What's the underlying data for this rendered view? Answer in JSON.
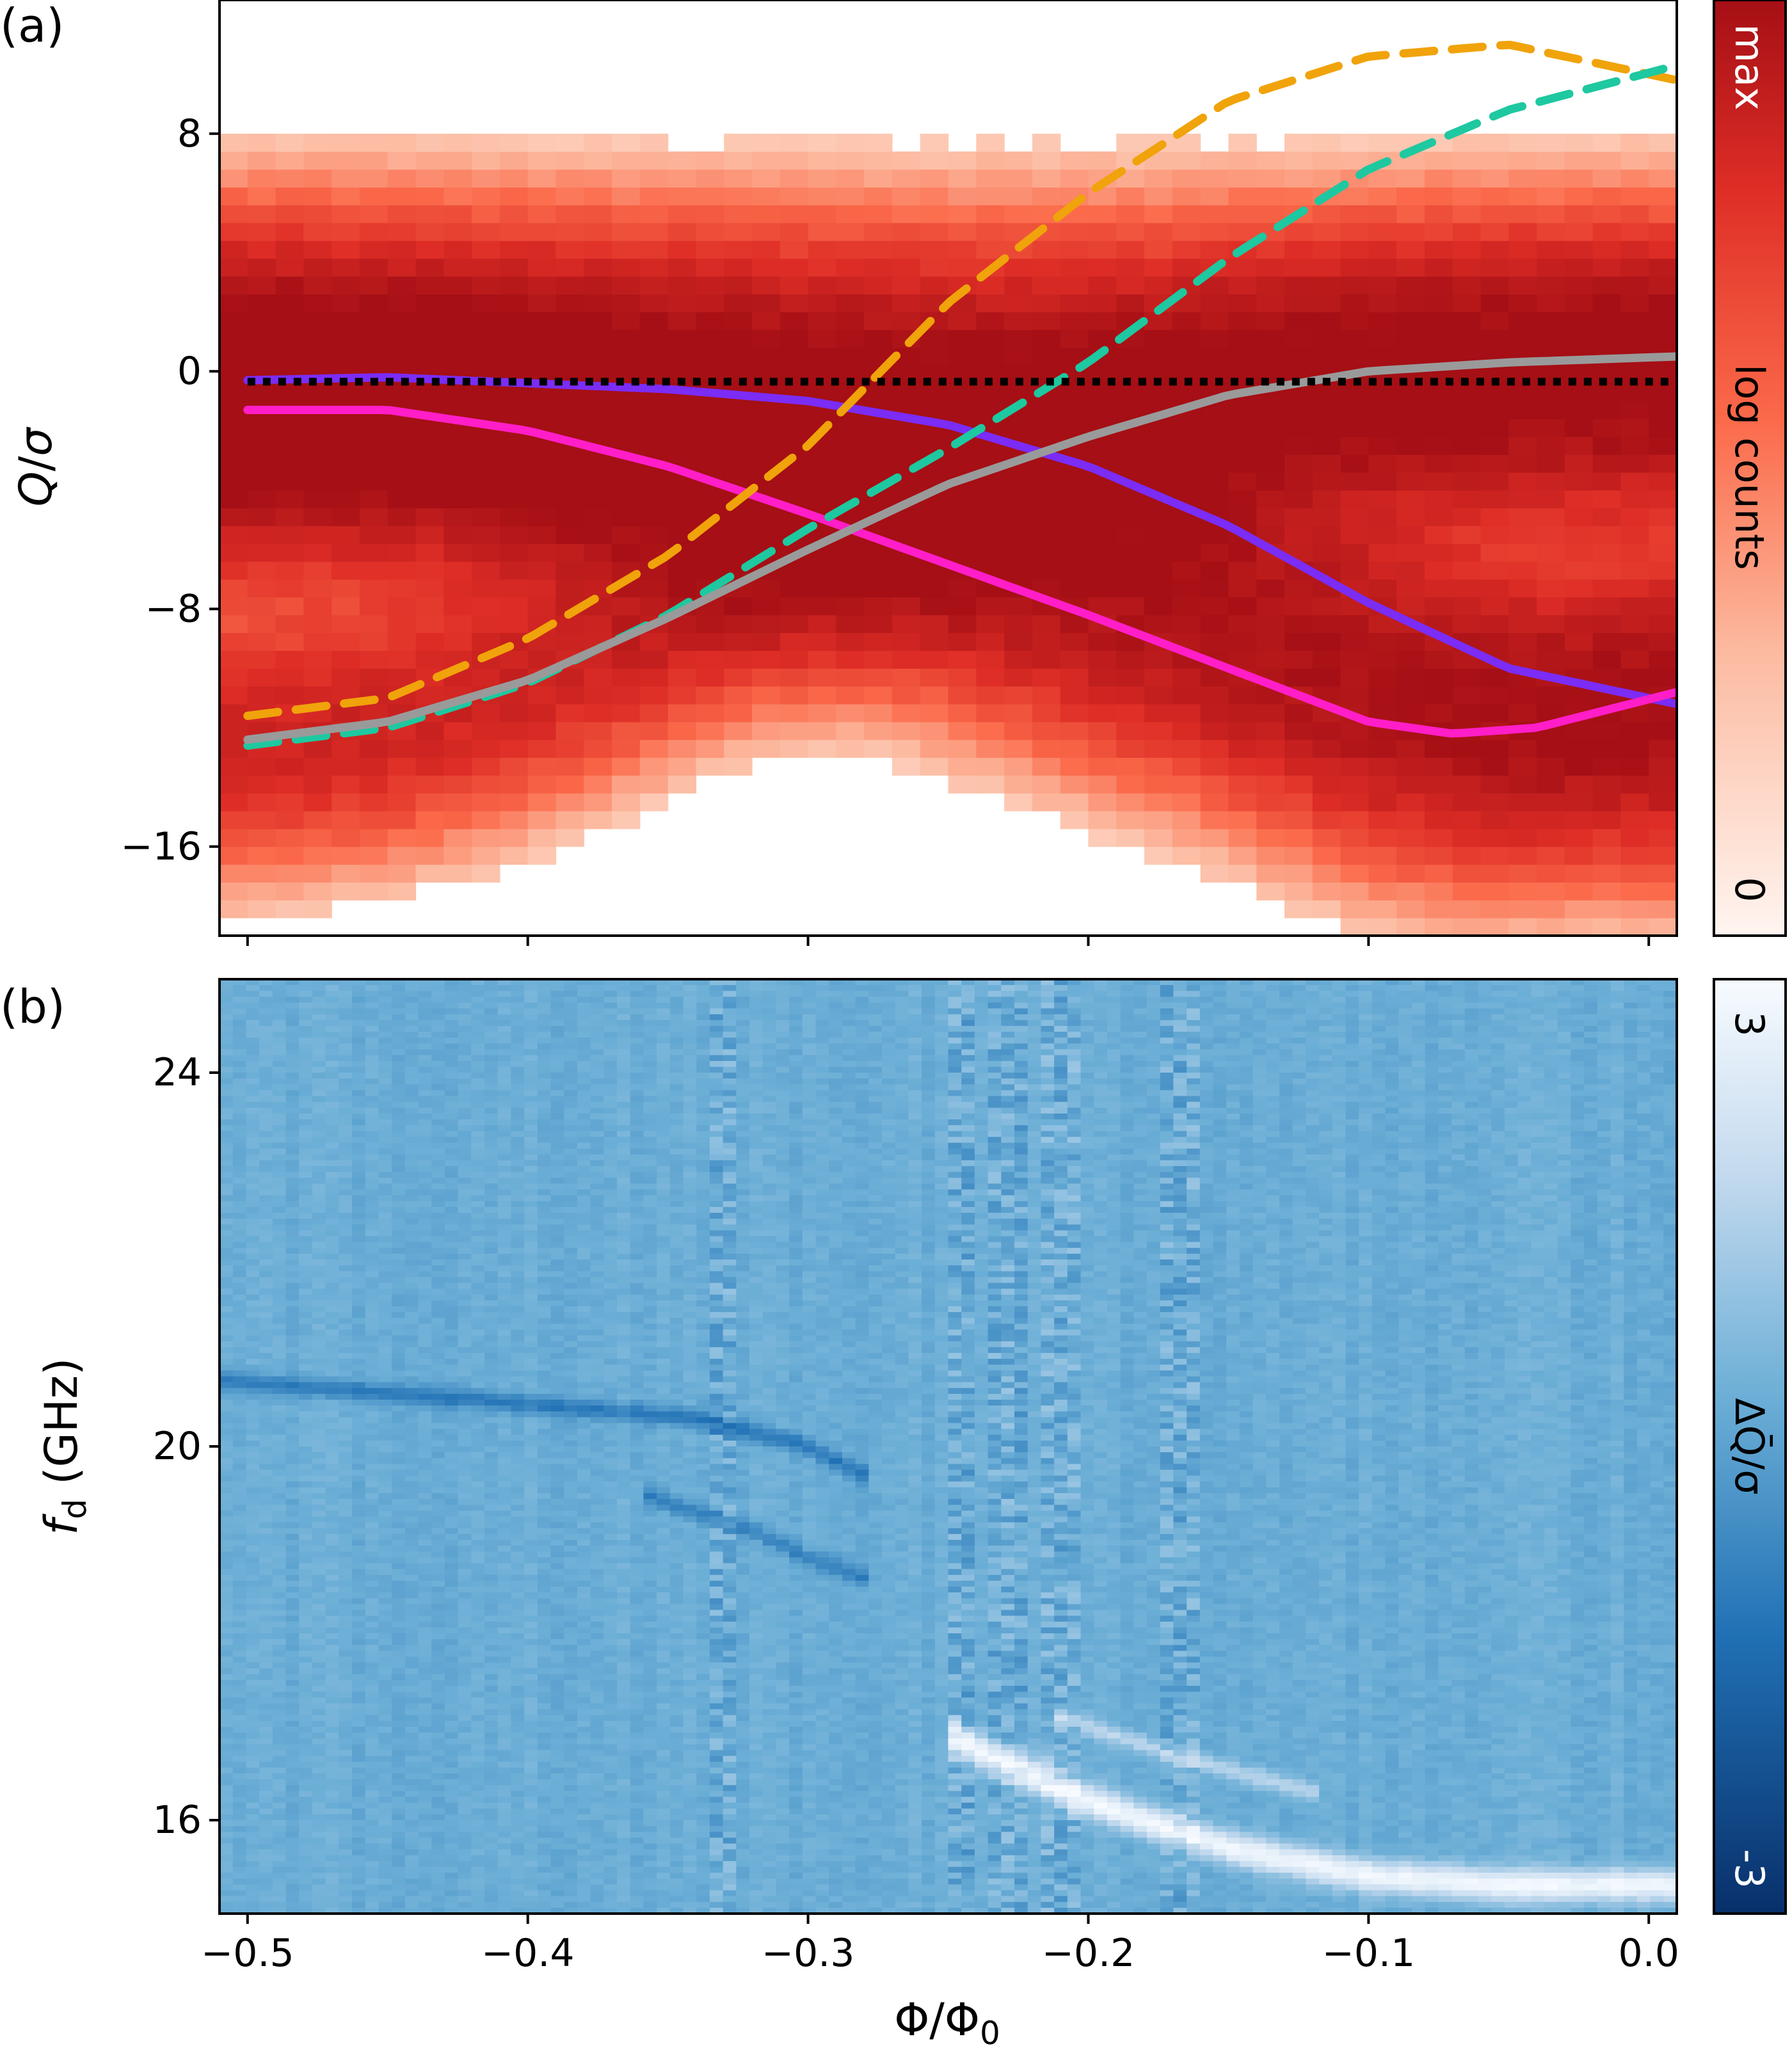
{
  "chart_data": [
    {
      "panel_label": "(a)",
      "type": "heatmap",
      "ylabel_symbol": "Q",
      "ylabel_sep": "/",
      "ylabel_sigma": "σ",
      "xlim": [
        -0.51,
        0.01
      ],
      "ylim": [
        -19,
        12.5
      ],
      "yticks": [
        8,
        0,
        -8,
        -16
      ],
      "ytick_labels": [
        "8",
        "0",
        "−8",
        "−16"
      ],
      "colormap": [
        "#fff5f0",
        "#fcbba1",
        "#fb6a4a",
        "#de2d26",
        "#a50f15"
      ],
      "colorbar": {
        "label": "log counts",
        "max_label": "max",
        "min_label": "0"
      },
      "series": [
        {
          "style": "solid",
          "color": "#7b2cf5",
          "x": [
            -0.5,
            -0.45,
            -0.4,
            -0.35,
            -0.3,
            -0.25,
            -0.2,
            -0.15,
            -0.1,
            -0.05,
            0.01
          ],
          "y": [
            -0.3,
            -0.2,
            -0.4,
            -0.6,
            -1.0,
            -1.8,
            -3.2,
            -5.2,
            -7.8,
            -10.0,
            -11.2
          ]
        },
        {
          "style": "solid",
          "color": "#ff1ec7",
          "x": [
            -0.5,
            -0.45,
            -0.4,
            -0.35,
            -0.3,
            -0.25,
            -0.2,
            -0.15,
            -0.1,
            -0.07,
            -0.04,
            0.01
          ],
          "y": [
            -1.3,
            -1.3,
            -2.0,
            -3.2,
            -4.8,
            -6.5,
            -8.2,
            -10.0,
            -11.8,
            -12.2,
            -12.0,
            -10.8
          ]
        },
        {
          "style": "dashed",
          "color": "#f0a30a",
          "x": [
            -0.5,
            -0.45,
            -0.4,
            -0.35,
            -0.3,
            -0.25,
            -0.2,
            -0.15,
            -0.1,
            -0.05,
            0.01
          ],
          "y": [
            -11.6,
            -11.0,
            -9.0,
            -6.2,
            -2.5,
            2.3,
            6.0,
            9.1,
            10.6,
            11.0,
            9.8
          ]
        },
        {
          "style": "dashed",
          "color": "#1ec8a0",
          "x": [
            -0.5,
            -0.45,
            -0.4,
            -0.35,
            -0.3,
            -0.25,
            -0.2,
            -0.15,
            -0.1,
            -0.05,
            0.01
          ],
          "y": [
            -12.6,
            -12.0,
            -10.5,
            -8.2,
            -5.3,
            -2.6,
            0.3,
            3.8,
            6.8,
            8.8,
            10.3
          ]
        },
        {
          "style": "solid",
          "color": "#9a9a9a",
          "x": [
            -0.5,
            -0.45,
            -0.4,
            -0.35,
            -0.3,
            -0.25,
            -0.2,
            -0.15,
            -0.1,
            -0.05,
            0.01
          ],
          "y": [
            -12.4,
            -11.8,
            -10.4,
            -8.3,
            -6.0,
            -3.8,
            -2.2,
            -0.8,
            0.0,
            0.3,
            0.5
          ]
        },
        {
          "style": "dotted",
          "color": "#000000",
          "x": [
            -0.5,
            0.01
          ],
          "y": [
            -0.35,
            -0.35
          ]
        }
      ]
    },
    {
      "panel_label": "(b)",
      "type": "heatmap",
      "ylabel_f": "f",
      "ylabel_sub": "d",
      "ylabel_unit": " (GHz)",
      "xlabel_phi": "Φ/Φ",
      "xlabel_sub": "0",
      "xlim": [
        -0.51,
        0.01
      ],
      "ylim": [
        15.0,
        25.0
      ],
      "xticks": [
        -0.5,
        -0.4,
        -0.3,
        -0.2,
        -0.1,
        0.0
      ],
      "xtick_labels": [
        "−0.5",
        "−0.4",
        "−0.3",
        "−0.2",
        "−0.1",
        "0.0"
      ],
      "yticks": [
        24,
        20,
        16
      ],
      "ytick_labels": [
        "24",
        "20",
        "16"
      ],
      "colormap": [
        "#08306b",
        "#2171b5",
        "#6baed6",
        "#c6dbef",
        "#f7fbff"
      ],
      "colorbar": {
        "label": "ΔQ̄/σ",
        "max_label": "3",
        "min_label": "-3",
        "range": [
          -3,
          3
        ]
      },
      "features": {
        "bright_transition": {
          "x": [
            -0.25,
            -0.2,
            -0.15,
            -0.1,
            -0.05,
            0.0
          ],
          "y": [
            16.9,
            16.2,
            15.7,
            15.4,
            15.3,
            15.3
          ]
        },
        "bright_secondary": {
          "x": [
            -0.21,
            -0.17,
            -0.12
          ],
          "y": [
            17.1,
            16.7,
            16.3
          ]
        },
        "dark_branch_upper": {
          "x": [
            -0.51,
            -0.42,
            -0.34,
            -0.3,
            -0.28
          ],
          "y": [
            20.7,
            20.5,
            20.3,
            20.0,
            19.7
          ]
        },
        "dark_branch_lower": {
          "x": [
            -0.36,
            -0.32,
            -0.3,
            -0.28
          ],
          "y": [
            19.5,
            19.1,
            18.8,
            18.6
          ]
        }
      }
    }
  ]
}
